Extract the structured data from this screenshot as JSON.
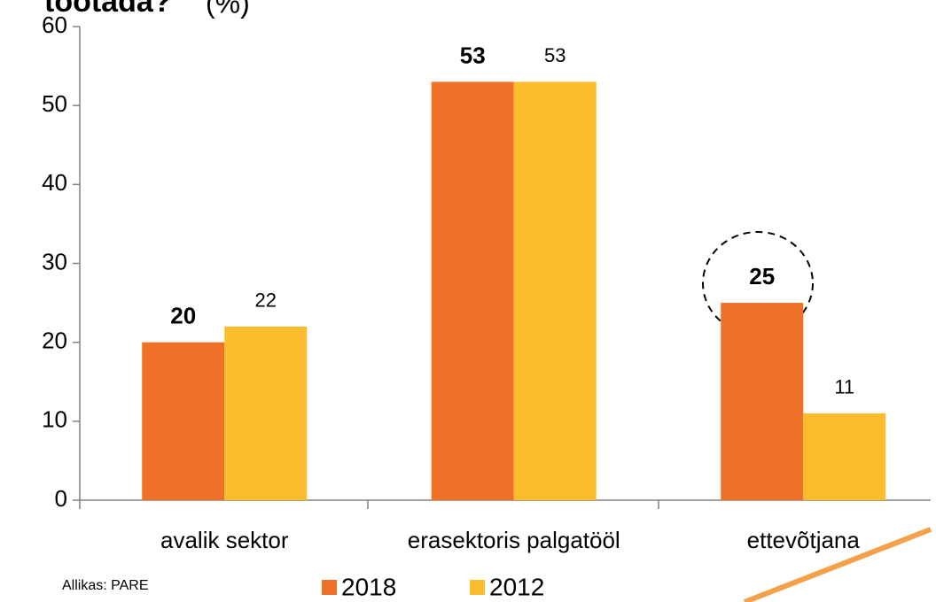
{
  "chart_data": {
    "type": "bar",
    "title": "töötada?",
    "title_unit": "(%)",
    "categories": [
      "avalik sektor",
      "erasektoris palgatööl",
      "ettevõtjana"
    ],
    "series": [
      {
        "name": "2018",
        "color": "#ee7127",
        "values": [
          20,
          53,
          25
        ]
      },
      {
        "name": "2012",
        "color": "#fbbd2e",
        "values": [
          22,
          53,
          11
        ]
      }
    ],
    "ylim": [
      0,
      60
    ],
    "yticks": [
      0,
      10,
      20,
      30,
      40,
      50,
      60
    ],
    "grid": false,
    "legend": "bottom",
    "source": "Allikas: PARE"
  }
}
